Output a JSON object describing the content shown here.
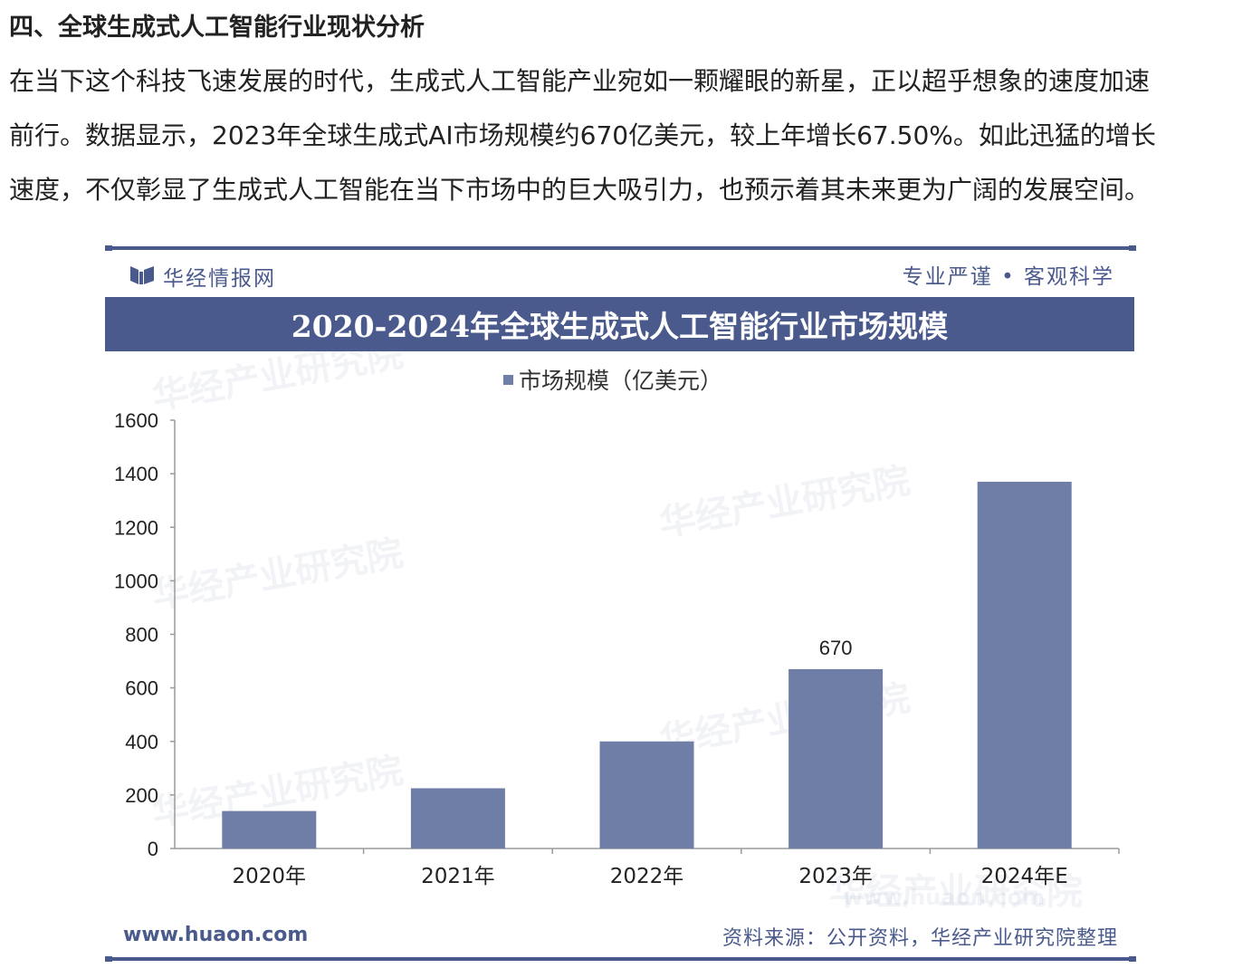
{
  "article": {
    "heading": "四、全球生成式人工智能行业现状分析",
    "paragraph_lines": [
      "在当下这个科技飞速发展的时代，生成式人工智能产业宛如一颗耀眼的新星，正以超乎想象的速度加速",
      "前行。数据显示，2023年全球生成式AI市场规模约670亿美元，较上年增长67.50%。如此迅猛的增长",
      "速度，不仅彰显了生成式人工智能在当下市场中的巨大吸引力，也预示着其未来更为广阔的发展空间。"
    ]
  },
  "card": {
    "brand_name": "华经情报网",
    "slogan": "专业严谨 • 客观科学",
    "footer_url": "www.huaon.com",
    "footer_source": "资料来源：公开资料，华经产业研究院整理",
    "watermark_text": "华经产业研究院",
    "watermark_url": "www.huaon.com"
  },
  "colors": {
    "brand": "#4b5a8c",
    "bar": "#6e7ea6"
  },
  "chart_data": {
    "type": "bar",
    "title": "2020-2024年全球生成式人工智能行业市场规模",
    "categories": [
      "2020年",
      "2021年",
      "2022年",
      "2023年",
      "2024年E"
    ],
    "series": [
      {
        "name": "市场规模（亿美元）",
        "values": [
          140,
          225,
          400,
          670,
          1370
        ]
      }
    ],
    "data_labels": [
      null,
      null,
      null,
      "670",
      null
    ],
    "ylim": [
      0,
      1600
    ],
    "yticks": [
      0,
      200,
      400,
      600,
      800,
      1000,
      1200,
      1400,
      1600
    ],
    "xlabel": "",
    "ylabel": "",
    "grid": false,
    "legend_position": "top"
  }
}
